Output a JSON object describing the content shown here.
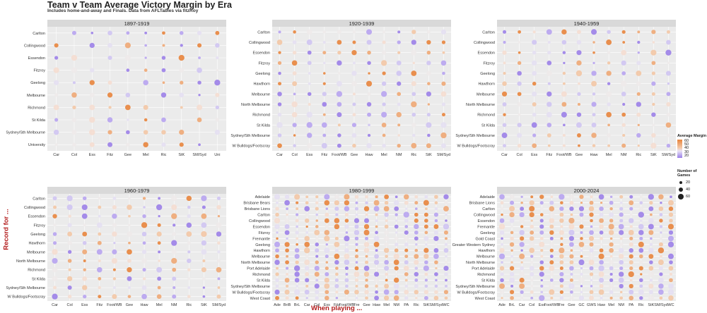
{
  "title": "Team v Team Average Victory Margin by Era",
  "subtitle": "Includes home-and-away and Finals. Data from AFLTables via fitzRoy",
  "ylabel": "Record for ...",
  "xlabel": "When playing ...",
  "legend": {
    "color_title": "Average Margin",
    "color_ticks": [
      "60",
      "50",
      "40",
      "30",
      "20"
    ],
    "size_title_line1": "Number of",
    "size_title_line2": "Games",
    "size_ticks": [
      "20",
      "40",
      "60"
    ]
  },
  "colors": {
    "high": "#e8843c",
    "low": "#9b7fe8",
    "panel": "#ebebeb",
    "strip": "#d9d9d9"
  },
  "chart_data": [
    {
      "type": "scatter",
      "title": "1897-1919",
      "y_categories": [
        "Carlton",
        "Collingwood",
        "Essendon",
        "Fitzroy",
        "Geelong",
        "Melbourne",
        "Richmond",
        "St Kilda",
        "Sydney/Sth Melbourne",
        "University"
      ],
      "x_categories": [
        "Car",
        "Col",
        "Ess",
        "Fitz",
        "Gee",
        "Mel",
        "Ric",
        "StK",
        "SM/Syd",
        "Uni"
      ]
    },
    {
      "type": "scatter",
      "title": "1920-1939",
      "y_categories": [
        "Carlton",
        "Collingwood",
        "Essendon",
        "Fitzroy",
        "Geelong",
        "Hawthorn",
        "Melbourne",
        "North Melbourne",
        "Richmond",
        "St Kilda",
        "Sydney/Sth Melbourne",
        "W Bulldogs/Footscray"
      ],
      "x_categories": [
        "Car",
        "Col",
        "Ess",
        "Fitz",
        "Foot/WB",
        "Gee",
        "Haw",
        "Mel",
        "NM",
        "Ric",
        "StK",
        "SM/Syd"
      ]
    },
    {
      "type": "scatter",
      "title": "1940-1959",
      "y_categories": [
        "Carlton",
        "Collingwood",
        "Essendon",
        "Fitzroy",
        "Geelong",
        "Hawthorn",
        "Melbourne",
        "North Melbourne",
        "Richmond",
        "St Kilda",
        "Sydney/Sth Melbourne",
        "W Bulldogs/Footscray"
      ],
      "x_categories": [
        "Car",
        "Col",
        "Ess",
        "Fitz",
        "Foot/WB",
        "Gee",
        "Haw",
        "Mel",
        "NM",
        "Ric",
        "StK",
        "SM/Syd"
      ]
    },
    {
      "type": "scatter",
      "title": "1960-1979",
      "y_categories": [
        "Carlton",
        "Collingwood",
        "Essendon",
        "Fitzroy",
        "Geelong",
        "Hawthorn",
        "Melbourne",
        "North Melbourne",
        "Richmond",
        "St Kilda",
        "Sydney/Sth Melbourne",
        "W Bulldogs/Footscray"
      ],
      "x_categories": [
        "Car",
        "Col",
        "Ess",
        "Fitz",
        "Foot/WB",
        "Gee",
        "Haw",
        "Mel",
        "NM",
        "Ric",
        "StK",
        "SM/Syd"
      ]
    },
    {
      "type": "scatter",
      "title": "1980-1999",
      "y_categories": [
        "Adelaide",
        "Brisbane Bears",
        "Brisbane Lions",
        "Carlton",
        "Collingwood",
        "Essendon",
        "Fitzroy",
        "Fremantle",
        "Geelong",
        "Hawthorn",
        "Melbourne",
        "North Melbourne",
        "Port Adelaide",
        "Richmond",
        "St Kilda",
        "Sydney/Sth Melbourne",
        "W Bulldogs/Footscray",
        "West Coast"
      ],
      "x_categories": [
        "Ade",
        "BriB",
        "BrL",
        "Car",
        "Col",
        "Ess",
        "Fitz",
        "Foot/WB",
        "Fre",
        "Gee",
        "Haw",
        "Mel",
        "NM",
        "PA",
        "Ric",
        "StK",
        "SM/Syd",
        "WC"
      ]
    },
    {
      "type": "scatter",
      "title": "2000-2024",
      "y_categories": [
        "Adelaide",
        "Brisbane Lions",
        "Carlton",
        "Collingwood",
        "Essendon",
        "Fremantle",
        "Geelong",
        "Gold Coast",
        "Greater Western Sydney",
        "Hawthorn",
        "Melbourne",
        "North Melbourne",
        "Port Adelaide",
        "Richmond",
        "St Kilda",
        "Sydney/Sth Melbourne",
        "W Bulldogs/Footscray",
        "West Coast"
      ],
      "x_categories": [
        "Ade",
        "BrL",
        "Car",
        "Col",
        "Ess",
        "Foot/WB",
        "Fre",
        "Gee",
        "GC",
        "GWS",
        "Haw",
        "Mel",
        "NM",
        "PA",
        "Ric",
        "StK",
        "SM/Syd",
        "WC"
      ]
    }
  ]
}
